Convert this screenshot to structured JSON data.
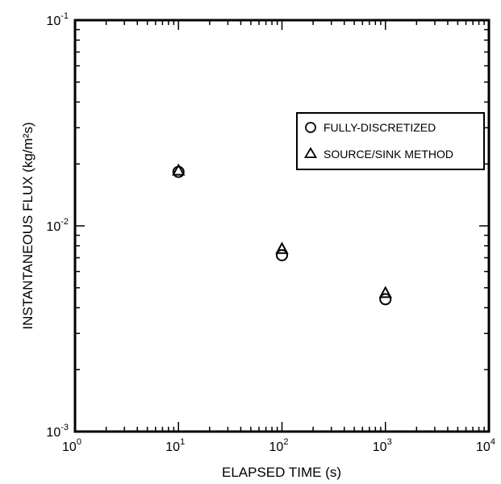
{
  "chart_data": {
    "type": "scatter",
    "xlabel": "ELAPSED TIME (s)",
    "ylabel": "INSTANTANEOUS FLUX  (kg/m²s)",
    "xscale": "log",
    "yscale": "log",
    "xlim": [
      1,
      10000
    ],
    "ylim": [
      0.001,
      0.1
    ],
    "grid": false,
    "legend_position": "upper-right",
    "x_ticks": [
      {
        "base": "10",
        "exp": "0"
      },
      {
        "base": "10",
        "exp": "1"
      },
      {
        "base": "10",
        "exp": "2"
      },
      {
        "base": "10",
        "exp": "3"
      },
      {
        "base": "10",
        "exp": "4"
      }
    ],
    "y_ticks": [
      {
        "base": "10",
        "exp": "-3"
      },
      {
        "base": "10",
        "exp": "-2"
      },
      {
        "base": "10",
        "exp": "-1"
      }
    ],
    "series": [
      {
        "name": "FULLY-DISCRETIZED",
        "marker": "circle",
        "x": [
          10,
          100,
          1000
        ],
        "y": [
          0.0183,
          0.0072,
          0.0044
        ]
      },
      {
        "name": "SOURCE/SINK METHOD",
        "marker": "triangle",
        "x": [
          10,
          100,
          1000
        ],
        "y": [
          0.0185,
          0.0077,
          0.0047
        ]
      }
    ]
  }
}
